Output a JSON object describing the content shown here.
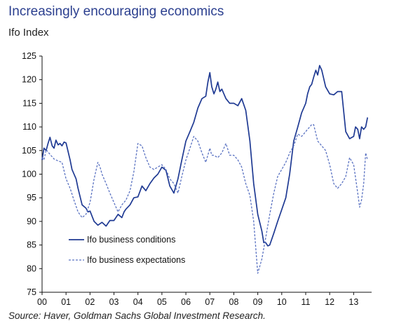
{
  "header": {
    "title": "Increasingly encouraging economics",
    "subtitle": "Ifo Index"
  },
  "footer": {
    "source": "Source: Haver, Goldman Sachs Global Investment Research."
  },
  "chart_data": {
    "type": "line",
    "title": "Increasingly encouraging economics",
    "subtitle": "Ifo Index",
    "xlabel": "",
    "ylabel": "",
    "ylim": [
      75,
      125
    ],
    "xlim": [
      2000.0,
      2013.75
    ],
    "yticks": [
      75,
      80,
      85,
      90,
      95,
      100,
      105,
      110,
      115,
      120,
      125
    ],
    "xticks": [
      {
        "pos": 2000,
        "label": "00"
      },
      {
        "pos": 2001,
        "label": "01"
      },
      {
        "pos": 2002,
        "label": "02"
      },
      {
        "pos": 2003,
        "label": "03"
      },
      {
        "pos": 2004,
        "label": "04"
      },
      {
        "pos": 2005,
        "label": "05"
      },
      {
        "pos": 2006,
        "label": "06"
      },
      {
        "pos": 2007,
        "label": "07"
      },
      {
        "pos": 2008,
        "label": "08"
      },
      {
        "pos": 2009,
        "label": "09"
      },
      {
        "pos": 2010,
        "label": "10"
      },
      {
        "pos": 2011,
        "label": "11"
      },
      {
        "pos": 2012,
        "label": "12"
      },
      {
        "pos": 2013,
        "label": "13"
      }
    ],
    "grid": false,
    "legend": "lower-left",
    "series": [
      {
        "name": "Ifo business conditions",
        "color": "#1f3a93",
        "style": "solid",
        "x": [
          2000.0,
          2000.08,
          2000.17,
          2000.25,
          2000.33,
          2000.42,
          2000.5,
          2000.58,
          2000.67,
          2000.75,
          2000.83,
          2000.92,
          2001.0,
          2001.17,
          2001.25,
          2001.42,
          2001.5,
          2001.67,
          2001.83,
          2001.92,
          2002.0,
          2002.17,
          2002.33,
          2002.5,
          2002.67,
          2002.83,
          2003.0,
          2003.17,
          2003.33,
          2003.42,
          2003.5,
          2003.67,
          2003.83,
          2004.0,
          2004.17,
          2004.33,
          2004.5,
          2004.67,
          2004.83,
          2005.0,
          2005.17,
          2005.33,
          2005.5,
          2005.67,
          2005.83,
          2006.0,
          2006.17,
          2006.33,
          2006.5,
          2006.67,
          2006.83,
          2006.92,
          2007.0,
          2007.08,
          2007.17,
          2007.25,
          2007.33,
          2007.42,
          2007.5,
          2007.67,
          2007.83,
          2008.0,
          2008.17,
          2008.33,
          2008.5,
          2008.67,
          2008.83,
          2009.0,
          2009.17,
          2009.25,
          2009.33,
          2009.42,
          2009.5,
          2009.67,
          2009.83,
          2010.0,
          2010.17,
          2010.33,
          2010.5,
          2010.67,
          2010.83,
          2011.0,
          2011.08,
          2011.17,
          2011.25,
          2011.33,
          2011.42,
          2011.5,
          2011.58,
          2011.67,
          2011.83,
          2012.0,
          2012.17,
          2012.33,
          2012.5,
          2012.67,
          2012.83,
          2013.0,
          2013.08,
          2013.17,
          2013.25,
          2013.33,
          2013.42,
          2013.5,
          2013.58
        ],
        "values": [
          103.0,
          105.5,
          105.0,
          106.5,
          107.8,
          106.0,
          105.5,
          107.2,
          106.2,
          106.5,
          106.0,
          106.8,
          106.6,
          103.0,
          101.0,
          99.0,
          97.0,
          93.5,
          92.8,
          92.0,
          92.2,
          90.0,
          89.2,
          89.8,
          89.0,
          90.2,
          90.2,
          91.5,
          90.8,
          92.0,
          92.6,
          93.5,
          95.0,
          95.2,
          97.5,
          96.5,
          98.0,
          99.2,
          100.0,
          101.5,
          100.8,
          97.5,
          96.0,
          99.0,
          103.0,
          107.0,
          109.0,
          111.0,
          114.0,
          116.0,
          116.5,
          119.5,
          121.5,
          118.5,
          117.0,
          118.0,
          119.5,
          117.5,
          118.0,
          116.0,
          115.0,
          115.0,
          114.5,
          116.0,
          113.5,
          107.0,
          98.0,
          91.5,
          88.0,
          85.5,
          85.5,
          84.8,
          85.0,
          87.5,
          90.0,
          92.5,
          95.0,
          100.0,
          107.0,
          110.0,
          113.0,
          115.0,
          117.0,
          118.5,
          119.0,
          120.5,
          122.0,
          121.0,
          123.0,
          122.0,
          118.5,
          117.0,
          116.8,
          117.5,
          117.5,
          109.0,
          107.5,
          108.0,
          110.0,
          109.5,
          107.5,
          110.0,
          109.5,
          110.0,
          112.0
        ]
      },
      {
        "name": "Ifo business expectations",
        "color": "#5b73c2",
        "style": "dashed",
        "x": [
          2000.0,
          2000.08,
          2000.17,
          2000.33,
          2000.5,
          2000.67,
          2000.83,
          2001.0,
          2001.17,
          2001.33,
          2001.5,
          2001.67,
          2001.83,
          2002.0,
          2002.17,
          2002.33,
          2002.42,
          2002.5,
          2002.67,
          2002.83,
          2003.0,
          2003.17,
          2003.33,
          2003.5,
          2003.67,
          2003.83,
          2004.0,
          2004.17,
          2004.33,
          2004.5,
          2004.67,
          2004.83,
          2005.0,
          2005.17,
          2005.33,
          2005.5,
          2005.67,
          2005.83,
          2006.0,
          2006.17,
          2006.33,
          2006.5,
          2006.67,
          2006.83,
          2007.0,
          2007.08,
          2007.17,
          2007.33,
          2007.5,
          2007.67,
          2007.83,
          2008.0,
          2008.17,
          2008.33,
          2008.5,
          2008.67,
          2008.83,
          2009.0,
          2009.17,
          2009.33,
          2009.5,
          2009.67,
          2009.83,
          2010.0,
          2010.17,
          2010.33,
          2010.5,
          2010.67,
          2010.83,
          2011.0,
          2011.08,
          2011.17,
          2011.25,
          2011.33,
          2011.5,
          2011.67,
          2011.83,
          2012.0,
          2012.17,
          2012.33,
          2012.5,
          2012.67,
          2012.83,
          2013.0,
          2013.17,
          2013.25,
          2013.33,
          2013.42,
          2013.5,
          2013.58
        ],
        "values": [
          103.5,
          103.0,
          105.2,
          104.2,
          103.2,
          102.8,
          102.5,
          99.0,
          97.0,
          94.5,
          92.0,
          90.8,
          91.5,
          94.0,
          99.0,
          102.5,
          101.5,
          100.0,
          98.0,
          96.0,
          94.0,
          92.0,
          93.5,
          94.5,
          96.5,
          100.5,
          106.5,
          106.0,
          103.5,
          101.5,
          101.0,
          101.5,
          102.0,
          101.0,
          99.0,
          98.0,
          96.0,
          99.5,
          103.0,
          105.5,
          108.0,
          107.0,
          104.5,
          102.5,
          105.5,
          104.0,
          104.0,
          103.5,
          104.5,
          106.5,
          104.0,
          104.0,
          103.0,
          101.5,
          98.0,
          95.5,
          90.0,
          79.0,
          82.0,
          86.5,
          91.5,
          96.0,
          99.5,
          101.0,
          102.5,
          104.5,
          106.0,
          108.5,
          108.0,
          109.0,
          109.5,
          110.0,
          110.5,
          110.5,
          107.0,
          106.0,
          105.0,
          102.0,
          98.0,
          97.0,
          98.0,
          99.5,
          103.5,
          102.0,
          96.0,
          93.0,
          94.5,
          98.0,
          104.5,
          103.0
        ]
      }
    ]
  }
}
